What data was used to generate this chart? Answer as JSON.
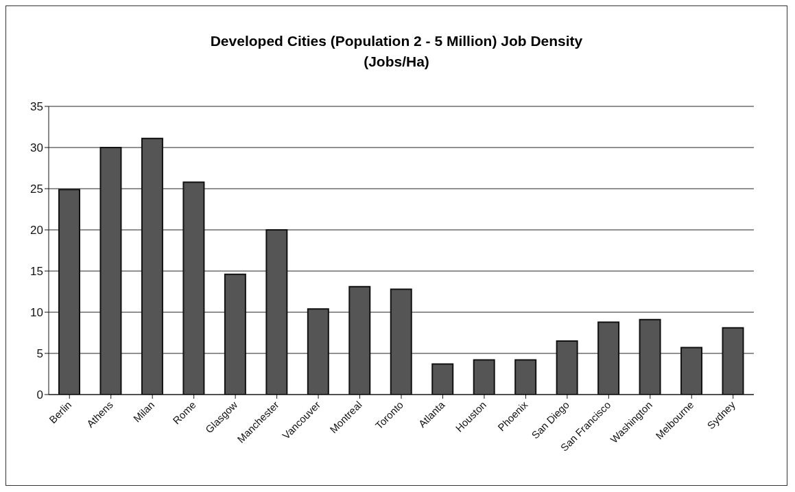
{
  "chart_data": {
    "type": "bar",
    "title": "Developed Cities (Population 2 - 5 Million) Job Density",
    "subtitle": "(Jobs/Ha)",
    "categories": [
      "Berlin",
      "Athens",
      "Milan",
      "Rome",
      "Glasgow",
      "Manchester",
      "Vancouver",
      "Montreal",
      "Toronto",
      "Atlanta",
      "Houston",
      "Phoenix",
      "San Diego",
      "San Francisco",
      "Washington",
      "Melbourne",
      "Sydney"
    ],
    "values": [
      24.9,
      30.0,
      31.1,
      25.8,
      14.6,
      20.0,
      10.4,
      13.1,
      12.8,
      3.7,
      4.2,
      4.2,
      6.5,
      8.8,
      9.1,
      5.7,
      8.1
    ],
    "color": "#555555",
    "ylim": [
      0,
      35
    ],
    "yticks": [
      0,
      5,
      10,
      15,
      20,
      25,
      30,
      35
    ],
    "grid": "y",
    "legend": false
  }
}
